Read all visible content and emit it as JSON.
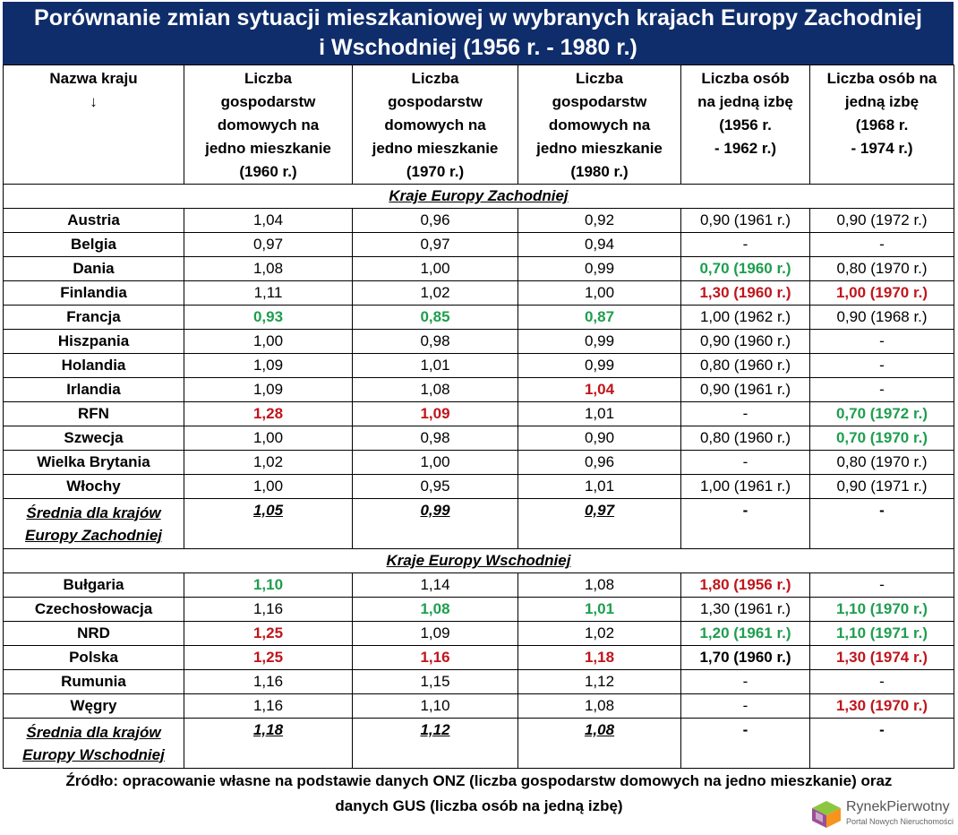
{
  "title": {
    "line1": "Porównanie zmian sytuacji mieszkaniowej w wybranych krajach Europy Zachodniej",
    "line2": "i Wschodniej (1956 r. - 1980 r.)"
  },
  "chart_data": {
    "type": "table",
    "columns": [
      {
        "lines": [
          "Nazwa kraju",
          "↓"
        ]
      },
      {
        "lines": [
          "Liczba",
          "gospodarstw",
          "domowych na",
          "jedno mieszkanie",
          "(1960 r.)"
        ]
      },
      {
        "lines": [
          "Liczba",
          "gospodarstw",
          "domowych na",
          "jedno mieszkanie",
          "(1970 r.)"
        ]
      },
      {
        "lines": [
          "Liczba",
          "gospodarstw",
          "domowych na",
          "jedno mieszkanie",
          "(1980 r.)"
        ]
      },
      {
        "lines": [
          "Liczba osób",
          "na jedną izbę",
          "(1956 r.",
          "- 1962 r.)"
        ]
      },
      {
        "lines": [
          "Liczba osób na",
          "jedną izbę",
          "(1968 r.",
          "- 1974 r.)"
        ]
      }
    ],
    "sections": [
      {
        "title": "Kraje Europy Zachodniej",
        "rows": [
          {
            "name": "Austria",
            "cells": [
              {
                "v": "1,04"
              },
              {
                "v": "0,96"
              },
              {
                "v": "0,92"
              },
              {
                "v": "0,90 (1961 r.)"
              },
              {
                "v": "0,90 (1972 r.)"
              }
            ]
          },
          {
            "name": "Belgia",
            "cells": [
              {
                "v": "0,97"
              },
              {
                "v": "0,97"
              },
              {
                "v": "0,94"
              },
              {
                "v": "-"
              },
              {
                "v": "-"
              }
            ]
          },
          {
            "name": "Dania",
            "cells": [
              {
                "v": "1,08"
              },
              {
                "v": "1,00"
              },
              {
                "v": "0,99"
              },
              {
                "v": "0,70 (1960 r.)",
                "c": "green"
              },
              {
                "v": "0,80 (1970 r.)"
              }
            ]
          },
          {
            "name": "Finlandia",
            "cells": [
              {
                "v": "1,11"
              },
              {
                "v": "1,02"
              },
              {
                "v": "1,00"
              },
              {
                "v": "1,30 (1960 r.)",
                "c": "red"
              },
              {
                "v": "1,00 (1970 r.)",
                "c": "red"
              }
            ]
          },
          {
            "name": "Francja",
            "cells": [
              {
                "v": "0,93",
                "c": "green"
              },
              {
                "v": "0,85",
                "c": "green"
              },
              {
                "v": "0,87",
                "c": "green"
              },
              {
                "v": "1,00 (1962 r.)"
              },
              {
                "v": "0,90 (1968 r.)"
              }
            ]
          },
          {
            "name": "Hiszpania",
            "cells": [
              {
                "v": "1,00"
              },
              {
                "v": "0,98"
              },
              {
                "v": "0,99"
              },
              {
                "v": "0,90 (1960 r.)"
              },
              {
                "v": "-"
              }
            ]
          },
          {
            "name": "Holandia",
            "cells": [
              {
                "v": "1,09"
              },
              {
                "v": "1,01"
              },
              {
                "v": "0,99"
              },
              {
                "v": "0,80 (1960 r.)"
              },
              {
                "v": "-"
              }
            ]
          },
          {
            "name": "Irlandia",
            "cells": [
              {
                "v": "1,09"
              },
              {
                "v": "1,08"
              },
              {
                "v": "1,04",
                "c": "red"
              },
              {
                "v": "0,90 (1961 r.)"
              },
              {
                "v": "-"
              }
            ]
          },
          {
            "name": "RFN",
            "cells": [
              {
                "v": "1,28",
                "c": "red"
              },
              {
                "v": "1,09",
                "c": "red"
              },
              {
                "v": "1,01"
              },
              {
                "v": "-"
              },
              {
                "v": "0,70 (1972 r.)",
                "c": "green"
              }
            ]
          },
          {
            "name": "Szwecja",
            "cells": [
              {
                "v": "1,00"
              },
              {
                "v": "0,98"
              },
              {
                "v": "0,90"
              },
              {
                "v": "0,80 (1960 r.)"
              },
              {
                "v": "0,70 (1970 r.)",
                "c": "green"
              }
            ]
          },
          {
            "name": "Wielka Brytania",
            "cells": [
              {
                "v": "1,02"
              },
              {
                "v": "1,00"
              },
              {
                "v": "0,96"
              },
              {
                "v": "-"
              },
              {
                "v": "0,80 (1970 r.)"
              }
            ]
          },
          {
            "name": "Włochy",
            "cells": [
              {
                "v": "1,00"
              },
              {
                "v": "0,95"
              },
              {
                "v": "1,01"
              },
              {
                "v": "1,00 (1961 r.)"
              },
              {
                "v": "0,90 (1971 r.)"
              }
            ]
          }
        ],
        "average": {
          "line1": "Średnia dla krajów",
          "line2": "Europy Zachodniej",
          "values": [
            "1,05",
            "0,99",
            "0,97",
            "-",
            "-"
          ]
        }
      },
      {
        "title": "Kraje Europy Wschodniej",
        "rows": [
          {
            "name": "Bułgaria",
            "cells": [
              {
                "v": "1,10",
                "c": "green"
              },
              {
                "v": "1,14"
              },
              {
                "v": "1,08"
              },
              {
                "v": "1,80 (1956 r.)",
                "c": "red"
              },
              {
                "v": "-"
              }
            ]
          },
          {
            "name": "Czechosłowacja",
            "cells": [
              {
                "v": "1,16"
              },
              {
                "v": "1,08",
                "c": "green"
              },
              {
                "v": "1,01",
                "c": "green"
              },
              {
                "v": "1,30 (1961 r.)"
              },
              {
                "v": "1,10 (1970 r.)",
                "c": "green"
              }
            ]
          },
          {
            "name": "NRD",
            "cells": [
              {
                "v": "1,25",
                "c": "red"
              },
              {
                "v": "1,09"
              },
              {
                "v": "1,02"
              },
              {
                "v": "1,20 (1961 r.)",
                "c": "green"
              },
              {
                "v": "1,10 (1971 r.)",
                "c": "green"
              }
            ]
          },
          {
            "name": "Polska",
            "cells": [
              {
                "v": "1,25",
                "c": "red"
              },
              {
                "v": "1,16",
                "c": "red"
              },
              {
                "v": "1,18",
                "c": "red"
              },
              {
                "v": "1,70 (1960 r.)",
                "c": "bold"
              },
              {
                "v": "1,30 (1974 r.)",
                "c": "red"
              }
            ]
          },
          {
            "name": "Rumunia",
            "cells": [
              {
                "v": "1,16"
              },
              {
                "v": "1,15"
              },
              {
                "v": "1,12"
              },
              {
                "v": "-"
              },
              {
                "v": "-"
              }
            ]
          },
          {
            "name": "Węgry",
            "cells": [
              {
                "v": "1,16"
              },
              {
                "v": "1,10"
              },
              {
                "v": "1,08"
              },
              {
                "v": "-"
              },
              {
                "v": "1,30 (1970 r.)",
                "c": "red"
              }
            ]
          }
        ],
        "average": {
          "line1": "Średnia dla krajów",
          "line2": "Europy Wschodniej",
          "values": [
            "1,18",
            "1,12",
            "1,08",
            "-",
            "-"
          ]
        }
      }
    ]
  },
  "source": {
    "line1": "Źródło: opracowanie własne na podstawie danych ONZ (liczba gospodarstw domowych na jedno mieszkanie) oraz",
    "line2": "danych GUS (liczba osób na jedną izbę)"
  },
  "logo": {
    "name": "RynekPierwotny",
    "tagline": "Portal Nowych Nieruchomości",
    "colors": [
      "#8dc63f",
      "#f7941d",
      "#9b4f96",
      "#00a99d"
    ]
  },
  "colors": {
    "header_bg": "#0f2d6b",
    "green": "#1e9e4e",
    "red": "#c0151b"
  }
}
